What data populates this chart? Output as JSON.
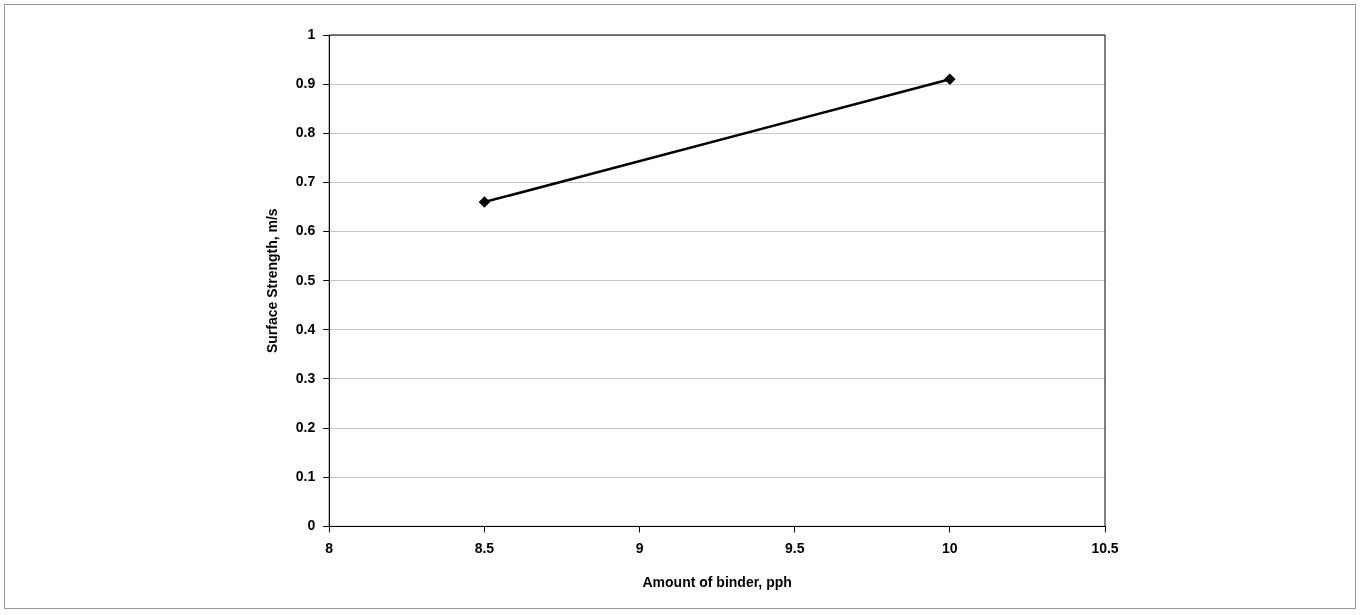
{
  "chart_data": {
    "type": "line",
    "xlabel": "Amount of binder, pph",
    "ylabel": "Surface Strength, m/s",
    "x": [
      8.5,
      10
    ],
    "series": [
      {
        "color": "#000000",
        "values": [
          0.66,
          0.91
        ]
      }
    ],
    "xlim": [
      8,
      10.5
    ],
    "xticks": [
      8,
      8.5,
      9,
      9.5,
      10,
      10.5
    ],
    "ylim": [
      0,
      1
    ],
    "yticks": [
      0,
      0.1,
      0.2,
      0.3,
      0.4,
      0.5,
      0.6,
      0.7,
      0.8,
      0.9,
      1
    ],
    "grid": "y",
    "legend": false,
    "marker": "diamond",
    "line_style": "solid"
  }
}
